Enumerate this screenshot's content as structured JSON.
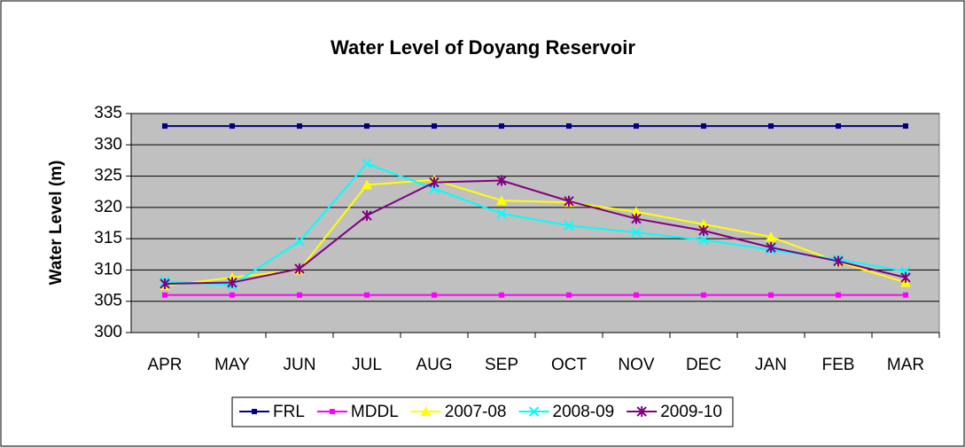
{
  "chart_data": {
    "type": "line",
    "title": "Water Level of Doyang Reservoir",
    "y_label": "Water Level (m)",
    "categories": [
      "APR",
      "MAY",
      "JUN",
      "JUL",
      "AUG",
      "SEP",
      "OCT",
      "NOV",
      "DEC",
      "JAN",
      "FEB",
      "MAR"
    ],
    "series": [
      {
        "name": "FRL",
        "color": "#000080",
        "marker": "square",
        "values": [
          333,
          333,
          333,
          333,
          333,
          333,
          333,
          333,
          333,
          333,
          333,
          333
        ]
      },
      {
        "name": "MDDL",
        "color": "#ff00ff",
        "marker": "square",
        "values": [
          306,
          306,
          306,
          306,
          306,
          306,
          306,
          306,
          306,
          306,
          306,
          306
        ]
      },
      {
        "name": "2007-08",
        "color": "#ffff00",
        "marker": "triangle",
        "values": [
          307.5,
          308.8,
          310,
          323.6,
          324.4,
          321.1,
          320.8,
          319.3,
          317.3,
          315.3,
          311.3,
          308
        ]
      },
      {
        "name": "2008-09",
        "color": "#00ffff",
        "marker": "x",
        "values": [
          308.2,
          307.6,
          314.6,
          327,
          323,
          319,
          317.1,
          316,
          314.8,
          313.2,
          311.7,
          309.8
        ]
      },
      {
        "name": "2009-10",
        "color": "#800080",
        "marker": "star",
        "values": [
          307.8,
          308,
          310.2,
          318.7,
          324,
          324.3,
          321,
          318.2,
          316.3,
          313.6,
          311.4,
          308.8
        ]
      }
    ],
    "ylim": [
      300,
      335
    ],
    "yticks": [
      300,
      305,
      310,
      315,
      320,
      325,
      330,
      335
    ],
    "grid": true,
    "legend": "bottom",
    "plot_background": "#c0c0c0"
  }
}
